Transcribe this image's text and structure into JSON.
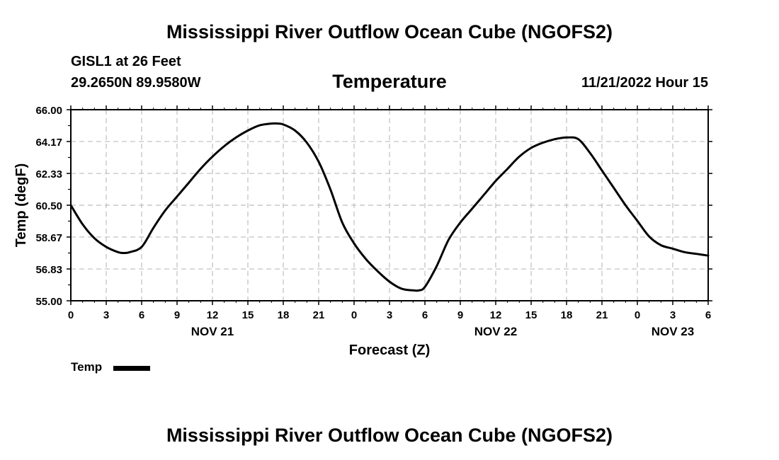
{
  "title": "Mississippi River Outflow Ocean Cube (NGOFS2)",
  "station": "GISL1 at 26 Feet",
  "coordinates": "29.2650N  89.9580W",
  "subtitle": "Temperature",
  "timestamp": "11/21/2022 Hour 15",
  "footer_title": "Mississippi River Outflow Ocean Cube (NGOFS2)",
  "chart_data": {
    "type": "line",
    "title": "Temperature",
    "xlabel": "Forecast (Z)",
    "ylabel": "Temp (degF)",
    "xlim": [
      0,
      54
    ],
    "ylim": [
      55.0,
      66.0
    ],
    "grid": true,
    "y_ticks": [
      55.0,
      56.83,
      58.67,
      60.5,
      62.33,
      64.17,
      66.0
    ],
    "y_tick_labels": [
      "55.00",
      "56.83",
      "58.67",
      "60.50",
      "62.33",
      "64.17",
      "66.00"
    ],
    "x_ticks": [
      0,
      3,
      6,
      9,
      12,
      15,
      18,
      21,
      24,
      27,
      30,
      33,
      36,
      39,
      42,
      45,
      48,
      51,
      54
    ],
    "x_tick_labels": [
      "0",
      "3",
      "6",
      "9",
      "12",
      "15",
      "18",
      "21",
      "0",
      "3",
      "6",
      "9",
      "12",
      "15",
      "18",
      "21",
      "0",
      "3",
      "6"
    ],
    "date_labels": [
      {
        "x": 12,
        "label": "NOV 21"
      },
      {
        "x": 36,
        "label": "NOV 22"
      },
      {
        "x": 51,
        "label": "NOV 23"
      }
    ],
    "legend": "bottom-left",
    "series": [
      {
        "name": "Temp",
        "color": "#000000",
        "x": [
          0,
          1,
          2,
          3,
          4,
          4.5,
          5,
          6,
          7,
          8,
          9,
          10,
          11,
          12,
          13,
          14,
          15,
          16,
          17,
          17.5,
          18,
          19,
          20,
          21,
          22,
          23,
          24,
          25,
          26,
          27,
          28,
          29,
          29.5,
          30,
          31,
          32,
          33,
          34,
          35,
          36,
          37,
          38,
          39,
          40,
          41,
          42,
          43,
          44,
          45,
          46,
          47,
          48,
          49,
          50,
          51,
          52,
          53,
          54
        ],
        "values": [
          60.5,
          59.4,
          58.6,
          58.1,
          57.8,
          57.75,
          57.8,
          58.1,
          59.2,
          60.2,
          61.0,
          61.8,
          62.6,
          63.3,
          63.9,
          64.4,
          64.8,
          65.1,
          65.2,
          65.2,
          65.15,
          64.8,
          64.1,
          63.0,
          61.4,
          59.5,
          58.3,
          57.4,
          56.7,
          56.1,
          55.7,
          55.6,
          55.6,
          55.8,
          57.0,
          58.5,
          59.5,
          60.3,
          61.1,
          61.9,
          62.6,
          63.3,
          63.8,
          64.1,
          64.3,
          64.4,
          64.3,
          63.5,
          62.5,
          61.5,
          60.5,
          59.6,
          58.7,
          58.2,
          58.0,
          57.8,
          57.7,
          57.6
        ]
      }
    ]
  }
}
